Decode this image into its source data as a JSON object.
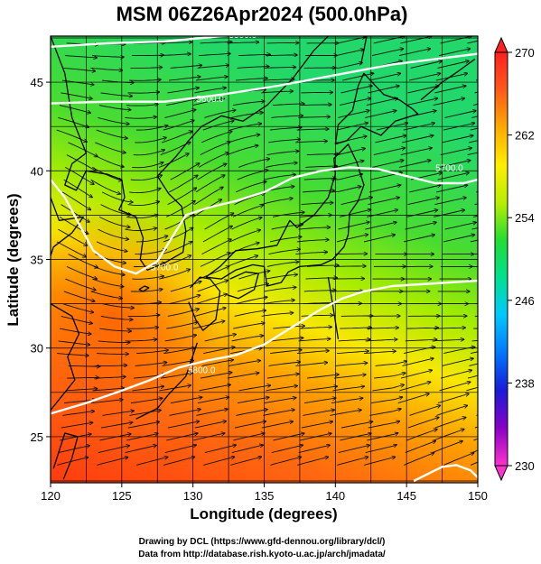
{
  "title": "MSM 06Z26Apr2024 (500.0hPa)",
  "x_axis": {
    "label": "Longitude (degrees)",
    "ticks": [
      "120",
      "125",
      "130",
      "135",
      "140",
      "145",
      "150"
    ]
  },
  "y_axis": {
    "label": "Latitude  (degrees)",
    "ticks": [
      "25",
      "30",
      "35",
      "40",
      "45"
    ]
  },
  "colorbar": {
    "ticks": [
      "230",
      "238",
      "246",
      "254",
      "262",
      "270"
    ],
    "min": 230,
    "max": 270,
    "stops": [
      "#ff33cc",
      "#8a00c8",
      "#1a1ad8",
      "#0077ff",
      "#00c8ff",
      "#00e090",
      "#22dd33",
      "#b8ee00",
      "#ffee00",
      "#ffaa00",
      "#ff5a1a",
      "#ff2020"
    ]
  },
  "contour_labels": [
    "5500.0",
    "5600.0",
    "5700.0",
    "5700.0",
    "5800.0"
  ],
  "credits": [
    "Drawing by DCL (https://www.gfd-dennou.org/library/dcl/)",
    "Data from http://database.rish.kyoto-u.ac.jp/arch/jmadata/"
  ],
  "map_data": {
    "type": "filled contour with streamlines",
    "variable": "temperature (K)",
    "lon_range": [
      120,
      150
    ],
    "lat_range": [
      22.4,
      47.6
    ],
    "height_contours": [
      {
        "level": "5500.0",
        "points": [
          [
            120,
            47.0
          ],
          [
            124,
            47.2
          ],
          [
            128,
            47.3
          ],
          [
            132,
            47.6
          ],
          [
            136,
            47.9
          ],
          [
            140,
            48.4
          ],
          [
            142,
            48.8
          ]
        ]
      },
      {
        "level": "5600.0",
        "points": [
          [
            120,
            43.8
          ],
          [
            124,
            43.9
          ],
          [
            128,
            43.9
          ],
          [
            132,
            44.3
          ],
          [
            136,
            44.8
          ],
          [
            140,
            45.4
          ],
          [
            144,
            46.0
          ],
          [
            148,
            46.4
          ],
          [
            150,
            46.6
          ]
        ]
      },
      {
        "level": "5700.0",
        "points": [
          [
            120,
            39.5
          ],
          [
            121,
            38.5
          ],
          [
            122,
            37.0
          ],
          [
            123,
            35.5
          ],
          [
            124.5,
            34.6
          ],
          [
            126,
            34.2
          ],
          [
            127.5,
            34.9
          ],
          [
            128.5,
            36.2
          ],
          [
            129.5,
            37.5
          ],
          [
            131,
            37.9
          ],
          [
            133,
            38.3
          ],
          [
            135,
            38.8
          ],
          [
            137,
            39.6
          ],
          [
            139,
            40.0
          ],
          [
            141,
            40.2
          ],
          [
            143,
            40.1
          ],
          [
            145,
            39.7
          ],
          [
            147,
            39.3
          ],
          [
            149,
            39.3
          ],
          [
            150,
            39.5
          ]
        ]
      },
      {
        "level": "5800.0",
        "points": [
          [
            120,
            26.3
          ],
          [
            122.5,
            26.9
          ],
          [
            125,
            27.6
          ],
          [
            127,
            28.2
          ],
          [
            129,
            28.9
          ],
          [
            131,
            29.3
          ],
          [
            133,
            29.6
          ],
          [
            135,
            30.2
          ],
          [
            137,
            31.2
          ],
          [
            139,
            32.2
          ],
          [
            140.5,
            32.8
          ],
          [
            142,
            33.2
          ],
          [
            144,
            33.5
          ],
          [
            146,
            33.6
          ],
          [
            148,
            33.7
          ],
          [
            150,
            33.8
          ]
        ]
      },
      {
        "level": "5800.0",
        "points": [
          [
            145.5,
            22.5
          ],
          [
            146.5,
            22.9
          ],
          [
            147.5,
            23.3
          ],
          [
            148.5,
            23.4
          ],
          [
            149.5,
            23.1
          ],
          [
            150,
            22.7
          ]
        ]
      }
    ]
  }
}
